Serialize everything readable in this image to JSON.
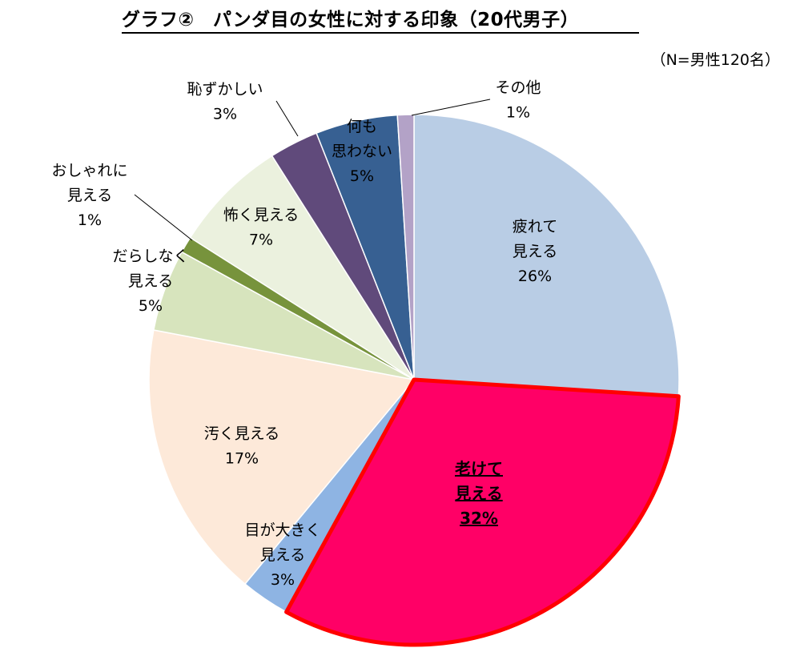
{
  "chart_data": {
    "type": "pie",
    "title": "グラフ②　パンダ目の女性に対する印象（20代男子）",
    "note": "（N=男性120名）",
    "slices": [
      {
        "label": [
          "疲れて",
          "見える"
        ],
        "value": 26,
        "text": "26%",
        "color": "#b9cde5"
      },
      {
        "label": [
          "老けて",
          "見える"
        ],
        "value": 32,
        "text": "32%",
        "color": "#ff0066",
        "highlight": true
      },
      {
        "label": [
          "目が大きく",
          "見える"
        ],
        "value": 3,
        "text": "3%",
        "color": "#8eb4e3"
      },
      {
        "label": [
          "汚く見える"
        ],
        "value": 17,
        "text": "17%",
        "color": "#fde9d9"
      },
      {
        "label": [
          "だらしなく",
          "見える"
        ],
        "value": 5,
        "text": "5%",
        "color": "#d7e4bd"
      },
      {
        "label": [
          "おしゃれに",
          "見える"
        ],
        "value": 1,
        "text": "1%",
        "color": "#77933c"
      },
      {
        "label": [
          "怖く見える"
        ],
        "value": 7,
        "text": "7%",
        "color": "#ebf1de"
      },
      {
        "label": [
          "恥ずかしい"
        ],
        "value": 3,
        "text": "3%",
        "color": "#604a7b"
      },
      {
        "label": [
          "何も",
          "思わない"
        ],
        "value": 5,
        "text": "5%",
        "color": "#376092"
      },
      {
        "label": [
          "その他"
        ],
        "value": 1,
        "text": "1%",
        "color": "#b3a2c7"
      }
    ]
  }
}
